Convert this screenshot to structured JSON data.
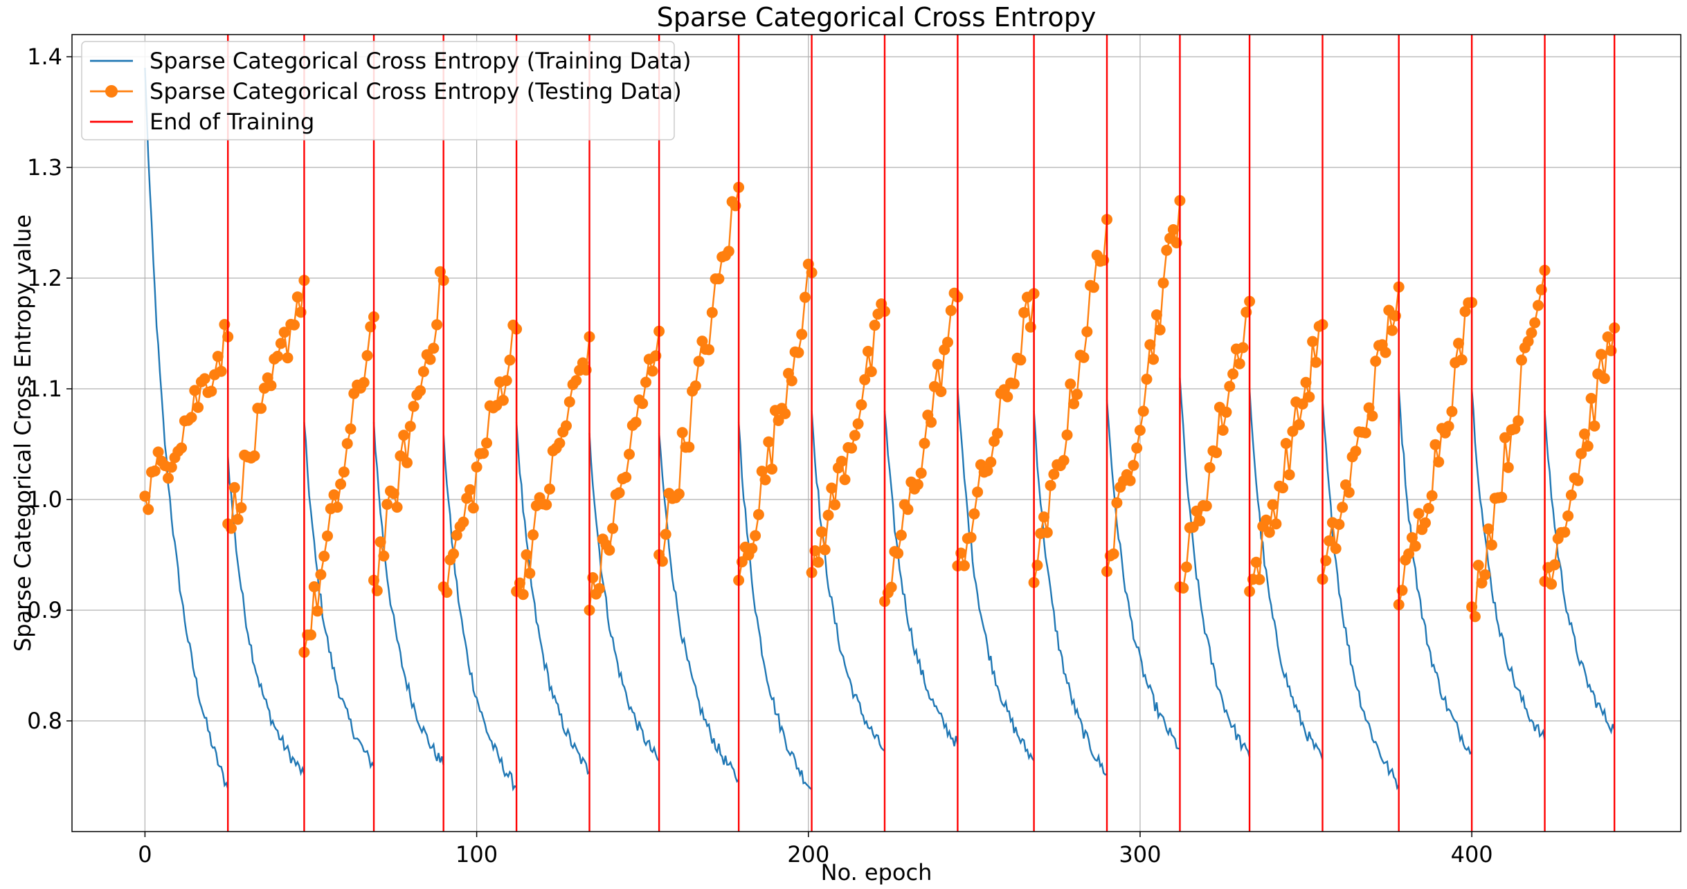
{
  "chart_data": {
    "type": "line",
    "title": "Sparse Categorical Cross Entropy",
    "xlabel": "No. epoch",
    "ylabel": "Sparse Categorical Cross Entropy value",
    "xlim": [
      -22,
      463
    ],
    "ylim": [
      0.7,
      1.42
    ],
    "xticks": [
      0,
      100,
      200,
      300,
      400
    ],
    "yticks": [
      0.8,
      0.9,
      1.0,
      1.1,
      1.2,
      1.3,
      1.4
    ],
    "grid": true,
    "legend_position": "top-left",
    "training_ends": [
      25,
      48,
      69,
      90,
      112,
      134,
      155,
      179,
      201,
      223,
      245,
      268,
      290,
      312,
      333,
      355,
      378,
      400,
      422,
      443
    ],
    "series": [
      {
        "name": "Sparse Categorical Cross Entropy (Training Data)",
        "color": "#1f77b4",
        "style": "line",
        "segments": [
          {
            "start": 0,
            "end": 25,
            "start_value": 1.39,
            "end_value": 0.735
          },
          {
            "start": 25,
            "end": 48,
            "start_value": 1.04,
            "end_value": 0.75
          },
          {
            "start": 48,
            "end": 69,
            "start_value": 1.07,
            "end_value": 0.757
          },
          {
            "start": 69,
            "end": 90,
            "start_value": 1.07,
            "end_value": 0.758
          },
          {
            "start": 90,
            "end": 112,
            "start_value": 1.06,
            "end_value": 0.738
          },
          {
            "start": 112,
            "end": 134,
            "start_value": 1.07,
            "end_value": 0.752
          },
          {
            "start": 134,
            "end": 155,
            "start_value": 1.06,
            "end_value": 0.762
          },
          {
            "start": 155,
            "end": 179,
            "start_value": 1.06,
            "end_value": 0.745
          },
          {
            "start": 179,
            "end": 201,
            "start_value": 1.07,
            "end_value": 0.736
          },
          {
            "start": 201,
            "end": 223,
            "start_value": 1.08,
            "end_value": 0.771
          },
          {
            "start": 223,
            "end": 245,
            "start_value": 1.08,
            "end_value": 0.777
          },
          {
            "start": 245,
            "end": 268,
            "start_value": 1.1,
            "end_value": 0.762
          },
          {
            "start": 268,
            "end": 290,
            "start_value": 1.08,
            "end_value": 0.75
          },
          {
            "start": 290,
            "end": 312,
            "start_value": 1.09,
            "end_value": 0.773
          },
          {
            "start": 312,
            "end": 333,
            "start_value": 1.11,
            "end_value": 0.765
          },
          {
            "start": 333,
            "end": 355,
            "start_value": 1.1,
            "end_value": 0.763
          },
          {
            "start": 355,
            "end": 378,
            "start_value": 1.09,
            "end_value": 0.74
          },
          {
            "start": 378,
            "end": 400,
            "start_value": 1.1,
            "end_value": 0.77
          },
          {
            "start": 400,
            "end": 422,
            "start_value": 1.1,
            "end_value": 0.781
          },
          {
            "start": 422,
            "end": 443,
            "start_value": 1.08,
            "end_value": 0.79
          }
        ]
      },
      {
        "name": "Sparse Categorical Cross Entropy (Testing Data)",
        "color": "#ff7f0e",
        "style": "line-marker",
        "segments": [
          {
            "start": 0,
            "end": 25,
            "start_value": 1.003,
            "end_value": 1.147
          },
          {
            "start": 25,
            "end": 48,
            "start_value": 0.978,
            "end_value": 1.198
          },
          {
            "start": 48,
            "end": 69,
            "start_value": 0.862,
            "end_value": 1.165
          },
          {
            "start": 69,
            "end": 90,
            "start_value": 0.927,
            "end_value": 1.198
          },
          {
            "start": 90,
            "end": 112,
            "start_value": 0.921,
            "end_value": 1.154
          },
          {
            "start": 112,
            "end": 134,
            "start_value": 0.917,
            "end_value": 1.147
          },
          {
            "start": 134,
            "end": 155,
            "start_value": 0.9,
            "end_value": 1.152
          },
          {
            "start": 155,
            "end": 179,
            "start_value": 0.95,
            "end_value": 1.282
          },
          {
            "start": 179,
            "end": 201,
            "start_value": 0.927,
            "end_value": 1.205
          },
          {
            "start": 201,
            "end": 223,
            "start_value": 0.934,
            "end_value": 1.17
          },
          {
            "start": 223,
            "end": 245,
            "start_value": 0.908,
            "end_value": 1.183
          },
          {
            "start": 245,
            "end": 268,
            "start_value": 0.94,
            "end_value": 1.186
          },
          {
            "start": 268,
            "end": 290,
            "start_value": 0.925,
            "end_value": 1.253
          },
          {
            "start": 290,
            "end": 312,
            "start_value": 0.935,
            "end_value": 1.27
          },
          {
            "start": 312,
            "end": 333,
            "start_value": 0.921,
            "end_value": 1.179
          },
          {
            "start": 333,
            "end": 355,
            "start_value": 0.917,
            "end_value": 1.158
          },
          {
            "start": 355,
            "end": 378,
            "start_value": 0.928,
            "end_value": 1.192
          },
          {
            "start": 378,
            "end": 400,
            "start_value": 0.905,
            "end_value": 1.178
          },
          {
            "start": 400,
            "end": 422,
            "start_value": 0.903,
            "end_value": 1.207
          },
          {
            "start": 422,
            "end": 443,
            "start_value": 0.926,
            "end_value": 1.155
          }
        ]
      },
      {
        "name": "End of Training",
        "color": "#ff0000",
        "style": "vline"
      }
    ]
  }
}
